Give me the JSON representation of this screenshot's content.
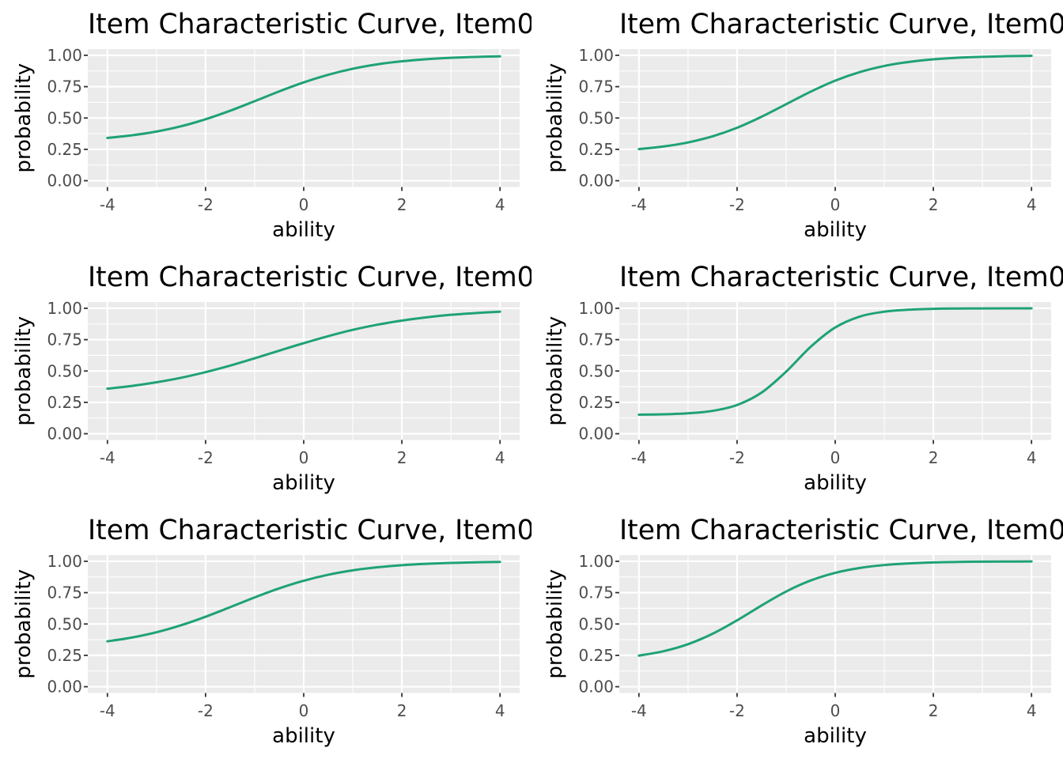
{
  "figure": {
    "background": "#FFFFFF",
    "panel_background": "#EBEBEB",
    "grid_color": "#FFFFFF",
    "curve_color": "#1FA274",
    "text_color": "#000000",
    "tick_label_color": "#4D4D4D",
    "tick_mark_color": "#333333",
    "layout": "3 rows x 2 columns of item characteristic curve plots"
  },
  "chart_data": [
    {
      "type": "line",
      "title": "Item Characteristic Curve, Item0",
      "title_truncated_at_right_edge": true,
      "xlabel": "ability",
      "ylabel": "probability",
      "xlim": [
        -4.4,
        4.4
      ],
      "ylim": [
        -0.05,
        1.05
      ],
      "x_ticks": [
        -4,
        -2,
        0,
        2,
        4
      ],
      "x_tick_labels": [
        "-4",
        "-2",
        "0",
        "2",
        "4"
      ],
      "y_ticks": [
        0,
        0.25,
        0.5,
        0.75,
        1
      ],
      "y_tick_labels": [
        "0.00",
        "0.25",
        "0.50",
        "0.75",
        "1.00"
      ],
      "grid": "major-and-minor",
      "legend": "none",
      "x": [
        -4,
        -3.5,
        -3,
        -2.5,
        -2,
        -1.5,
        -1,
        -0.5,
        0,
        0.5,
        1,
        1.5,
        2,
        2.5,
        3,
        3.5,
        4
      ],
      "y": [
        0.341,
        0.362,
        0.392,
        0.434,
        0.49,
        0.558,
        0.634,
        0.712,
        0.784,
        0.845,
        0.893,
        0.928,
        0.952,
        0.969,
        0.98,
        0.987,
        0.992
      ]
    },
    {
      "type": "line",
      "title": "Item Characteristic Curve, Item0",
      "title_truncated_at_right_edge": true,
      "xlabel": "ability",
      "ylabel": "probability",
      "xlim": [
        -4.4,
        4.4
      ],
      "ylim": [
        -0.05,
        1.05
      ],
      "x_ticks": [
        -4,
        -2,
        0,
        2,
        4
      ],
      "x_tick_labels": [
        "-4",
        "-2",
        "0",
        "2",
        "4"
      ],
      "y_ticks": [
        0,
        0.25,
        0.5,
        0.75,
        1
      ],
      "y_tick_labels": [
        "0.00",
        "0.25",
        "0.50",
        "0.75",
        "1.00"
      ],
      "grid": "major-and-minor",
      "legend": "none",
      "x": [
        -4,
        -3.5,
        -3,
        -2.5,
        -2,
        -1.5,
        -1,
        -0.5,
        0,
        0.5,
        1,
        1.5,
        2,
        2.5,
        3,
        3.5,
        4
      ],
      "y": [
        0.252,
        0.273,
        0.305,
        0.354,
        0.422,
        0.51,
        0.61,
        0.71,
        0.798,
        0.866,
        0.915,
        0.947,
        0.968,
        0.981,
        0.988,
        0.993,
        0.996
      ]
    },
    {
      "type": "line",
      "title": "Item Characteristic Curve, Item0",
      "title_truncated_at_right_edge": true,
      "xlabel": "ability",
      "ylabel": "probability",
      "xlim": [
        -4.4,
        4.4
      ],
      "ylim": [
        -0.05,
        1.05
      ],
      "x_ticks": [
        -4,
        -2,
        0,
        2,
        4
      ],
      "x_tick_labels": [
        "-4",
        "-2",
        "0",
        "2",
        "4"
      ],
      "y_ticks": [
        0,
        0.25,
        0.5,
        0.75,
        1
      ],
      "y_tick_labels": [
        "0.00",
        "0.25",
        "0.50",
        "0.75",
        "1.00"
      ],
      "grid": "major-and-minor",
      "legend": "none",
      "x": [
        -4,
        -3.5,
        -3,
        -2.5,
        -2,
        -1.5,
        -1,
        -0.5,
        0,
        0.5,
        1,
        1.5,
        2,
        2.5,
        3,
        3.5,
        4
      ],
      "y": [
        0.359,
        0.381,
        0.41,
        0.446,
        0.491,
        0.543,
        0.601,
        0.662,
        0.722,
        0.778,
        0.828,
        0.869,
        0.902,
        0.928,
        0.948,
        0.962,
        0.973
      ]
    },
    {
      "type": "line",
      "title": "Item Characteristic Curve, Item0",
      "title_truncated_at_right_edge": true,
      "xlabel": "ability",
      "ylabel": "probability",
      "xlim": [
        -4.4,
        4.4
      ],
      "ylim": [
        -0.05,
        1.05
      ],
      "x_ticks": [
        -4,
        -2,
        0,
        2,
        4
      ],
      "x_tick_labels": [
        "-4",
        "-2",
        "0",
        "2",
        "4"
      ],
      "y_ticks": [
        0,
        0.25,
        0.5,
        0.75,
        1
      ],
      "y_tick_labels": [
        "0.00",
        "0.25",
        "0.50",
        "0.75",
        "1.00"
      ],
      "grid": "major-and-minor",
      "legend": "none",
      "x": [
        -4,
        -3.5,
        -3,
        -2.5,
        -2,
        -1.5,
        -1,
        -0.5,
        0,
        0.5,
        1,
        1.5,
        2,
        2.5,
        3,
        3.5,
        4
      ],
      "y": [
        0.152,
        0.155,
        0.163,
        0.182,
        0.229,
        0.328,
        0.495,
        0.693,
        0.847,
        0.934,
        0.973,
        0.989,
        0.996,
        0.998,
        0.999,
        0.9995,
        0.9999
      ]
    },
    {
      "type": "line",
      "title": "Item Characteristic Curve, Item0",
      "title_truncated_at_right_edge": true,
      "xlabel": "ability",
      "ylabel": "probability",
      "xlim": [
        -4.4,
        4.4
      ],
      "ylim": [
        -0.05,
        1.05
      ],
      "x_ticks": [
        -4,
        -2,
        0,
        2,
        4
      ],
      "x_tick_labels": [
        "-4",
        "-2",
        "0",
        "2",
        "4"
      ],
      "y_ticks": [
        0,
        0.25,
        0.5,
        0.75,
        1
      ],
      "y_tick_labels": [
        "0.00",
        "0.25",
        "0.50",
        "0.75",
        "1.00"
      ],
      "grid": "major-and-minor",
      "legend": "none",
      "x": [
        -4,
        -3.5,
        -3,
        -2.5,
        -2,
        -1.5,
        -1,
        -0.5,
        0,
        0.5,
        1,
        1.5,
        2,
        2.5,
        3,
        3.5,
        4
      ],
      "y": [
        0.362,
        0.392,
        0.434,
        0.49,
        0.558,
        0.634,
        0.712,
        0.784,
        0.845,
        0.893,
        0.928,
        0.952,
        0.969,
        0.98,
        0.987,
        0.992,
        0.995
      ]
    },
    {
      "type": "line",
      "title": "Item Characteristic Curve, Item0",
      "title_truncated_at_right_edge": true,
      "xlabel": "ability",
      "ylabel": "probability",
      "xlim": [
        -4.4,
        4.4
      ],
      "ylim": [
        -0.05,
        1.05
      ],
      "x_ticks": [
        -4,
        -2,
        0,
        2,
        4
      ],
      "x_tick_labels": [
        "-4",
        "-2",
        "0",
        "2",
        "4"
      ],
      "y_ticks": [
        0,
        0.25,
        0.5,
        0.75,
        1
      ],
      "y_tick_labels": [
        "0.00",
        "0.25",
        "0.50",
        "0.75",
        "1.00"
      ],
      "grid": "major-and-minor",
      "legend": "none",
      "x": [
        -4,
        -3.5,
        -3,
        -2.5,
        -2,
        -1.5,
        -1,
        -0.5,
        0,
        0.5,
        1,
        1.5,
        2,
        2.5,
        3,
        3.5,
        4
      ],
      "y": [
        0.248,
        0.283,
        0.339,
        0.422,
        0.529,
        0.648,
        0.759,
        0.847,
        0.908,
        0.947,
        0.97,
        0.983,
        0.991,
        0.995,
        0.997,
        0.998,
        0.999
      ]
    }
  ]
}
